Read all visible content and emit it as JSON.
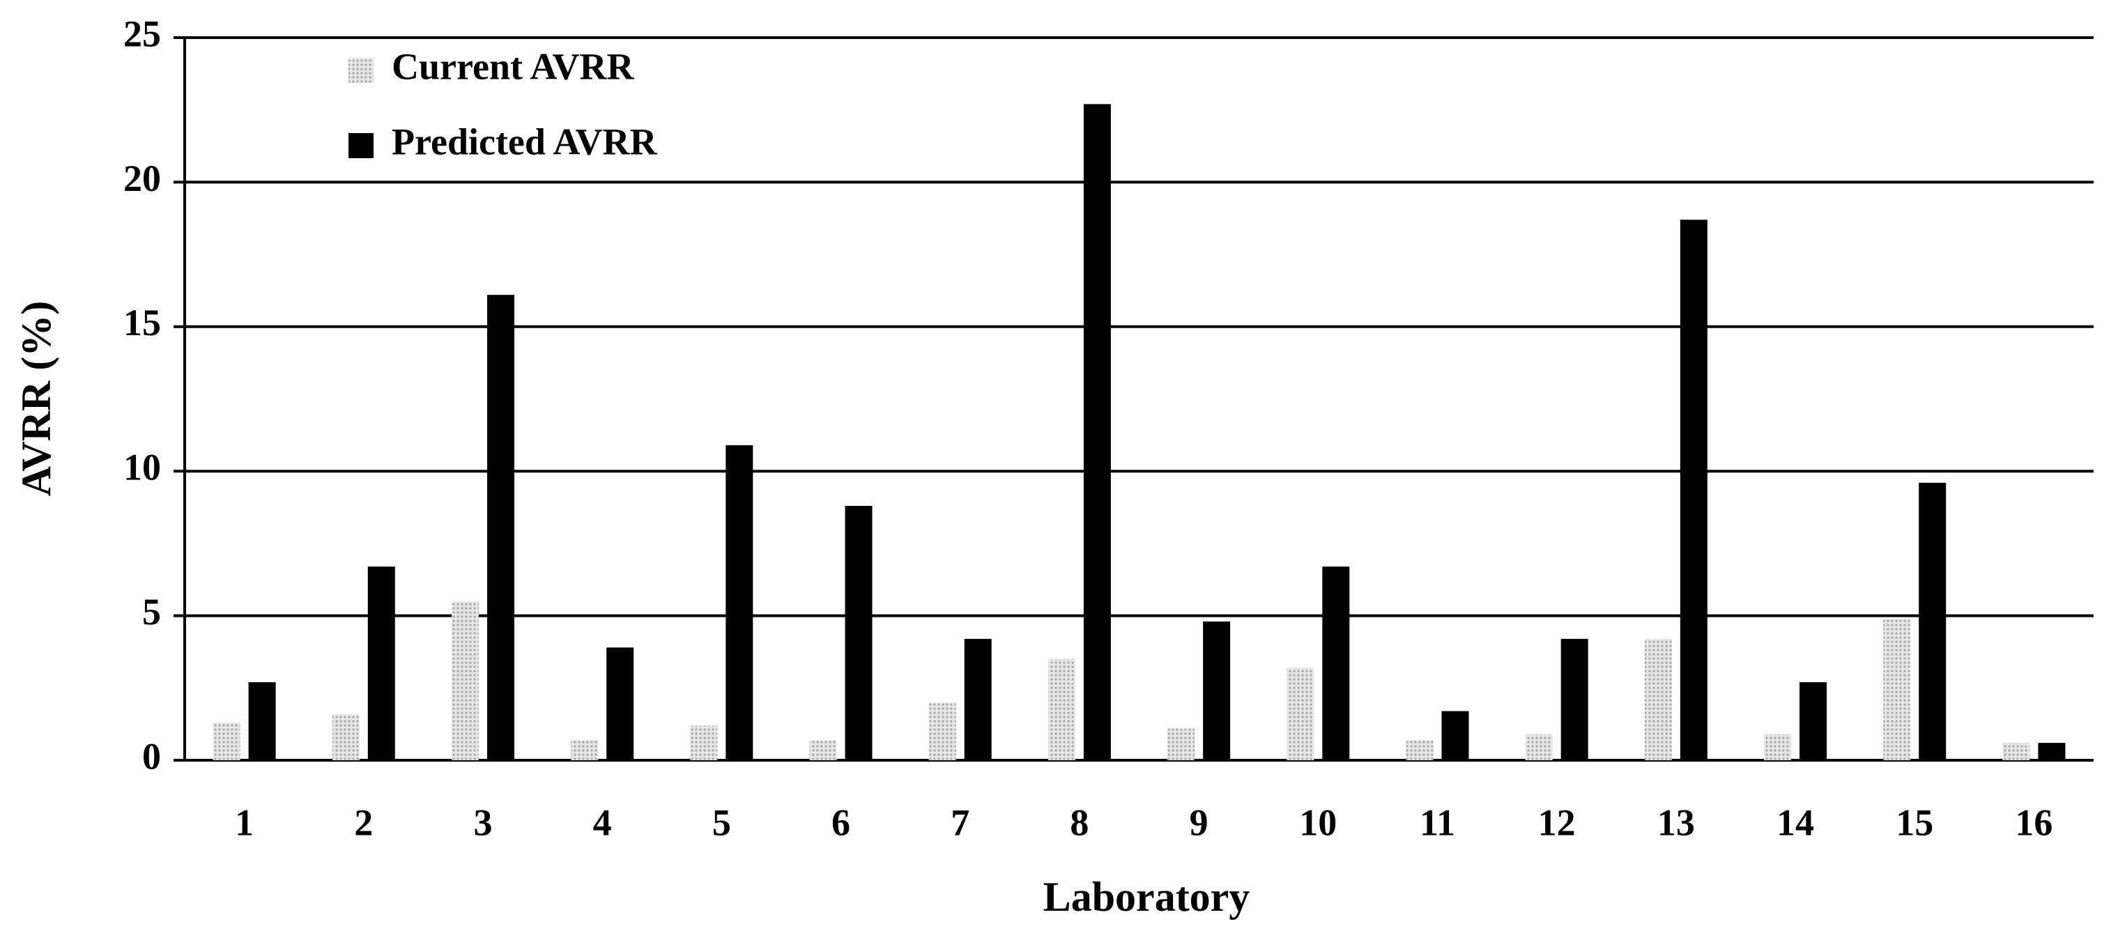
{
  "chart_data": {
    "type": "bar",
    "x_label": "Laboratory",
    "y_label": "AVRR (%)",
    "categories": [
      "1",
      "2",
      "3",
      "4",
      "5",
      "6",
      "7",
      "8",
      "9",
      "10",
      "11",
      "12",
      "13",
      "14",
      "15",
      "16"
    ],
    "series": [
      {
        "name": "Current AVRR",
        "color": "#a8a8a8",
        "values": [
          1.3,
          1.6,
          5.5,
          0.7,
          1.2,
          0.7,
          2.0,
          3.5,
          1.1,
          3.2,
          0.7,
          0.9,
          4.2,
          0.9,
          4.9,
          0.6
        ]
      },
      {
        "name": "Predicted AVRR",
        "color": "#000000",
        "values": [
          2.7,
          6.7,
          16.1,
          3.9,
          10.9,
          8.8,
          4.2,
          22.7,
          4.8,
          6.7,
          1.7,
          4.2,
          18.7,
          2.7,
          9.6,
          0.6
        ]
      }
    ],
    "ylim": [
      0,
      25
    ],
    "yticks": [
      0,
      5,
      10,
      15,
      20,
      25
    ],
    "grid": true,
    "legend": "upper left"
  }
}
